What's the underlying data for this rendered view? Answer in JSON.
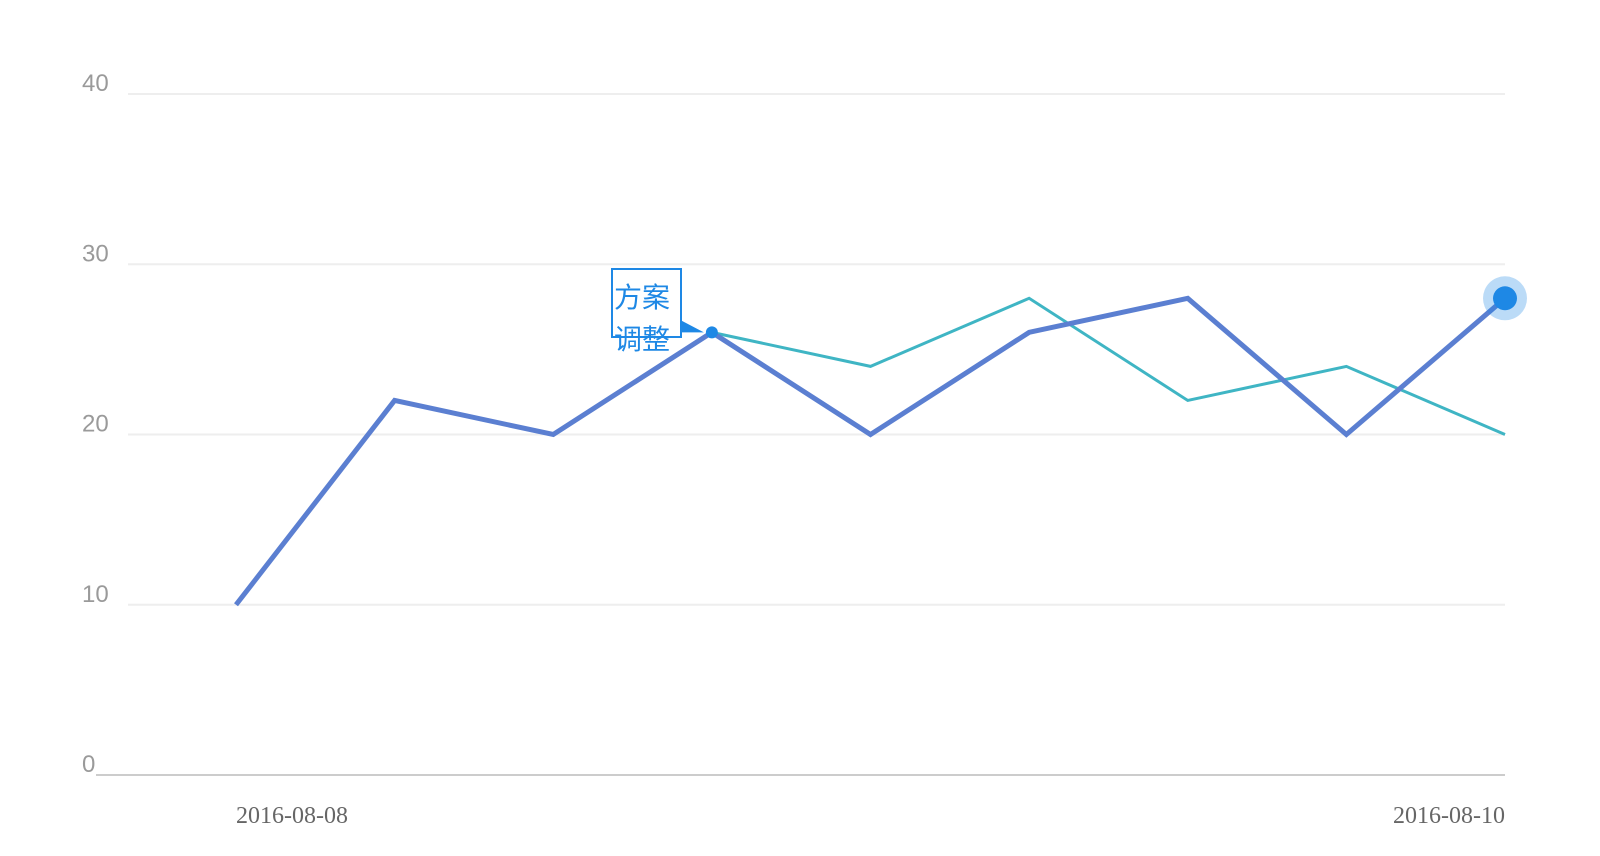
{
  "chart_data": {
    "type": "line",
    "title": "",
    "xlabel": "",
    "ylabel": "",
    "ylim": [
      0,
      40
    ],
    "yticks": [
      "0",
      "10",
      "20",
      "30",
      "40"
    ],
    "x_tick_labels": [
      "2016-08-08",
      "2016-08-10"
    ],
    "grid": true,
    "series": [
      {
        "color": "#5b7fd1",
        "values": [
          10,
          22,
          20,
          26,
          20,
          26,
          28,
          20,
          28
        ]
      },
      {
        "color": "#3fb5c4",
        "values": [
          null,
          null,
          null,
          26,
          24,
          28,
          22,
          24,
          20
        ]
      }
    ],
    "annotation": {
      "text": "方案调整",
      "series": 0,
      "point_index": 3,
      "color": "#1e88e5"
    },
    "highlight": {
      "series": 0,
      "point_index": 8,
      "color": "#1e88e5"
    }
  }
}
